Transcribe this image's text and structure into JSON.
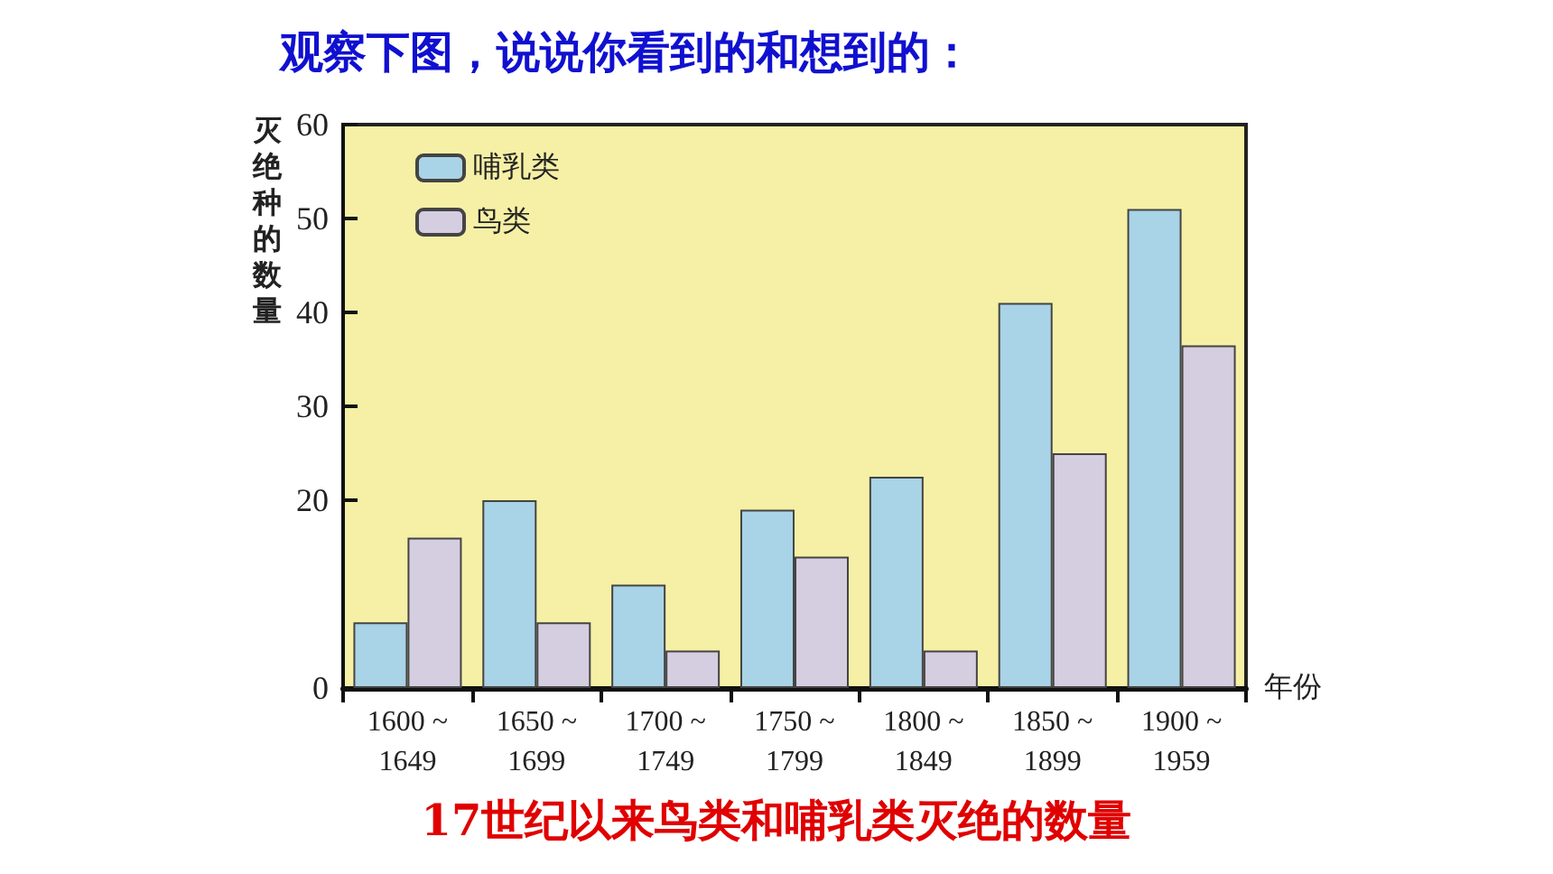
{
  "chart_data": {
    "type": "bar",
    "title": "观察下图，说说你看到的和想到的：",
    "annotations": [
      "17世纪以来鸟类和哺乳类灭绝的数量"
    ],
    "xlabel": "年份",
    "ylabel": "灭绝种的数量",
    "categories": [
      "1600 ~\n1649",
      "1650 ~\n1699",
      "1700 ~\n1749",
      "1750 ~\n1799",
      "1800 ~\n1849",
      "1850 ~\n1899",
      "1900 ~\n1959"
    ],
    "series": [
      {
        "name": "哺乳类",
        "color": "#a9d3e6",
        "values": [
          7,
          20,
          11,
          19,
          22.5,
          41,
          51
        ]
      },
      {
        "name": "鸟类",
        "color": "#d5cde0",
        "values": [
          16,
          7,
          4,
          14,
          4,
          25,
          36.5
        ]
      }
    ],
    "ylim": [
      0,
      60
    ],
    "yticks": [
      0,
      20,
      30,
      40,
      50,
      60
    ],
    "legend": "top left",
    "grid": false
  }
}
